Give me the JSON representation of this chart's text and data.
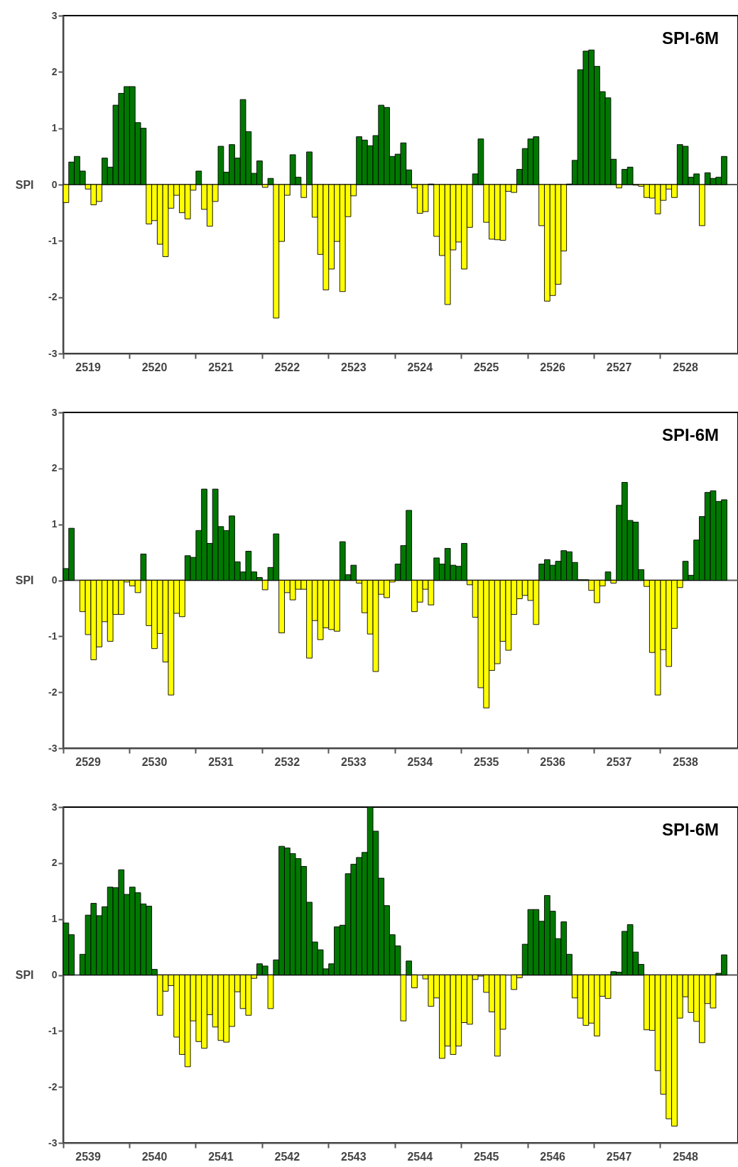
{
  "chart_data": [
    {
      "type": "bar",
      "title": "SPI-6M",
      "ylabel": "SPI",
      "ylim": [
        -3,
        3
      ],
      "yticks": [
        -3,
        -2,
        -1,
        0,
        1,
        2,
        3
      ],
      "categories": [
        null,
        null,
        null,
        null,
        "2519",
        null,
        null,
        null,
        null,
        null,
        null,
        null,
        null,
        null,
        null,
        null,
        "2520",
        null,
        null,
        null,
        null,
        null,
        null,
        null,
        null,
        null,
        null,
        null,
        "2521",
        null,
        null,
        null,
        null,
        null,
        null,
        null,
        null,
        null,
        null,
        null,
        "2522",
        null,
        null,
        null,
        null,
        null,
        null,
        null,
        null,
        null,
        null,
        null,
        "2523",
        null,
        null,
        null,
        null,
        null,
        null,
        null,
        null,
        null,
        null,
        null,
        "2524",
        null,
        null,
        null,
        null,
        null,
        null,
        null,
        null,
        null,
        null,
        null,
        "2525",
        null,
        null,
        null,
        null,
        null,
        null,
        null,
        null,
        null,
        null,
        null,
        "2526",
        null,
        null,
        null,
        null,
        null,
        null,
        null,
        null,
        null,
        null,
        null,
        "2527",
        null,
        null,
        null,
        null,
        null,
        null,
        null,
        null,
        null,
        null,
        null,
        "2528",
        null,
        null,
        null,
        null,
        null,
        null,
        null
      ],
      "values": [
        -0.32,
        0.4,
        0.5,
        0.24,
        -0.08,
        -0.36,
        -0.3,
        0.47,
        0.31,
        1.41,
        1.62,
        1.74,
        1.74,
        1.1,
        1.0,
        -0.7,
        -0.64,
        -1.06,
        -1.28,
        -0.42,
        -0.19,
        -0.5,
        -0.61,
        -0.1,
        0.24,
        -0.44,
        -0.74,
        -0.3,
        0.68,
        0.22,
        0.71,
        0.47,
        1.51,
        0.94,
        0.2,
        0.42,
        -0.05,
        0.11,
        -2.37,
        -1.01,
        -0.19,
        0.53,
        0.13,
        -0.23,
        0.58,
        -0.58,
        -1.24,
        -1.87,
        -1.5,
        -1.01,
        -1.9,
        -0.57,
        -0.2,
        0.85,
        0.79,
        0.69,
        0.87,
        1.41,
        1.37,
        0.5,
        0.54,
        0.74,
        0.26,
        -0.06,
        -0.51,
        -0.48,
        0.01,
        -0.92,
        -1.26,
        -2.13,
        -1.16,
        -1.02,
        -1.5,
        -0.76,
        0.19,
        0.81,
        -0.67,
        -0.97,
        -0.98,
        -0.99,
        -0.12,
        -0.14,
        0.27,
        0.64,
        0.81,
        0.85,
        -0.73,
        -2.07,
        -1.97,
        -1.77,
        -1.18,
        0.01,
        0.43,
        2.04,
        2.37,
        2.39,
        2.1,
        1.65,
        1.54,
        0.45,
        -0.06,
        0.27,
        0.31,
        -0.01,
        -0.03,
        -0.23,
        -0.24,
        -0.52,
        -0.28,
        -0.08,
        -0.23,
        0.71,
        0.68,
        0.13,
        0.19,
        -0.73,
        0.21,
        0.11,
        0.13,
        0.5
      ],
      "colors": [
        "#ffff00",
        "#007800",
        "#007800",
        "#007800",
        "#ffff00",
        "#ffff00",
        "#ffff00",
        "#007800",
        "#007800",
        "#007800",
        "#007800",
        "#007800",
        "#007800",
        "#007800",
        "#007800",
        "#ffff00",
        "#ffff00",
        "#ffff00",
        "#ffff00",
        "#ffff00",
        "#ffff00",
        "#ffff00",
        "#ffff00",
        "#ffff00",
        "#007800",
        "#ffff00",
        "#ffff00",
        "#ffff00",
        "#007800",
        "#007800",
        "#007800",
        "#007800",
        "#007800",
        "#007800",
        "#007800",
        "#007800",
        "#ffff00",
        "#007800",
        "#ffff00",
        "#ffff00",
        "#ffff00",
        "#007800",
        "#007800",
        "#ffff00",
        "#007800",
        "#ffff00",
        "#ffff00",
        "#ffff00",
        "#ffff00",
        "#ffff00",
        "#ffff00",
        "#ffff00",
        "#ffff00",
        "#007800",
        "#007800",
        "#007800",
        "#007800",
        "#007800",
        "#007800",
        "#007800",
        "#007800",
        "#007800",
        "#007800",
        "#ffff00",
        "#ffff00",
        "#ffff00",
        "#007800",
        "#ffff00",
        "#ffff00",
        "#ffff00",
        "#ffff00",
        "#ffff00",
        "#ffff00",
        "#ffff00",
        "#007800",
        "#007800",
        "#ffff00",
        "#ffff00",
        "#ffff00",
        "#ffff00",
        "#ffff00",
        "#ffff00",
        "#007800",
        "#007800",
        "#007800",
        "#007800",
        "#ffff00",
        "#ffff00",
        "#ffff00",
        "#ffff00",
        "#ffff00",
        "#007800",
        "#007800",
        "#007800",
        "#007800",
        "#007800",
        "#007800",
        "#007800",
        "#007800",
        "#007800",
        "#ffff00",
        "#007800",
        "#007800",
        "#ffff00",
        "#ffff00",
        "#ffff00",
        "#ffff00",
        "#ffff00",
        "#ffff00",
        "#ffff00",
        "#ffff00",
        "#007800",
        "#007800",
        "#007800",
        "#007800",
        "#ffff00",
        "#007800",
        "#007800",
        "#007800",
        "#007800"
      ]
    },
    {
      "type": "bar",
      "title": "SPI-6M",
      "ylabel": "SPI",
      "ylim": [
        -3,
        3
      ],
      "yticks": [
        -3,
        -2,
        -1,
        0,
        1,
        2,
        3
      ],
      "categories": [
        null,
        null,
        null,
        null,
        "2529",
        null,
        null,
        null,
        null,
        null,
        null,
        null,
        null,
        null,
        null,
        null,
        "2530",
        null,
        null,
        null,
        null,
        null,
        null,
        null,
        null,
        null,
        null,
        null,
        "2531",
        null,
        null,
        null,
        null,
        null,
        null,
        null,
        null,
        null,
        null,
        null,
        "2532",
        null,
        null,
        null,
        null,
        null,
        null,
        null,
        null,
        null,
        null,
        null,
        "2533",
        null,
        null,
        null,
        null,
        null,
        null,
        null,
        null,
        null,
        null,
        null,
        "2534",
        null,
        null,
        null,
        null,
        null,
        null,
        null,
        null,
        null,
        null,
        null,
        "2535",
        null,
        null,
        null,
        null,
        null,
        null,
        null,
        null,
        null,
        null,
        null,
        "2536",
        null,
        null,
        null,
        null,
        null,
        null,
        null,
        null,
        null,
        null,
        null,
        "2537",
        null,
        null,
        null,
        null,
        null,
        null,
        null,
        null,
        null,
        null,
        null,
        "2538",
        null,
        null,
        null,
        null,
        null,
        null,
        null
      ],
      "values": [
        0.21,
        0.93,
        0,
        -0.56,
        -0.97,
        -1.42,
        -1.19,
        -0.74,
        -1.09,
        -0.61,
        -0.61,
        -0.03,
        -0.1,
        -0.22,
        0.47,
        -0.81,
        -1.22,
        -0.95,
        -1.46,
        -2.05,
        -0.59,
        -0.65,
        0.44,
        0.41,
        0.89,
        1.63,
        0.66,
        1.63,
        0.96,
        0.89,
        1.15,
        0.33,
        0.15,
        0.52,
        0.15,
        0.05,
        -0.17,
        0.23,
        0.83,
        -0.94,
        -0.22,
        -0.35,
        -0.16,
        -0.16,
        -1.39,
        -0.72,
        -1.06,
        -0.85,
        -0.88,
        -0.91,
        0.69,
        0.1,
        0.27,
        -0.05,
        -0.58,
        -0.96,
        -1.63,
        -0.25,
        -0.31,
        -0.03,
        0.29,
        0.62,
        1.25,
        -0.56,
        -0.39,
        -0.16,
        -0.44,
        0.4,
        0.29,
        0.57,
        0.27,
        0.25,
        0.66,
        -0.08,
        -0.66,
        -1.92,
        -2.28,
        -1.61,
        -1.49,
        -1.09,
        -1.25,
        -0.61,
        -0.33,
        -0.27,
        -0.36,
        -0.79,
        0.29,
        0.37,
        0.27,
        0.34,
        0.53,
        0.51,
        0.32,
        0.01,
        0.01,
        -0.18,
        -0.4,
        -0.1,
        0.15,
        -0.05,
        1.34,
        1.75,
        1.07,
        1.04,
        0.19,
        -0.11,
        -1.29,
        -2.05,
        -1.24,
        -1.54,
        -0.86,
        -0.13,
        0.34,
        0.09,
        0.72,
        1.14,
        1.57,
        1.6,
        1.41,
        1.44
      ],
      "colors": [
        "#007800",
        "#007800",
        "#007800",
        "#ffff00",
        "#ffff00",
        "#ffff00",
        "#ffff00",
        "#ffff00",
        "#ffff00",
        "#ffff00",
        "#ffff00",
        "#ffff00",
        "#ffff00",
        "#ffff00",
        "#007800",
        "#ffff00",
        "#ffff00",
        "#ffff00",
        "#ffff00",
        "#ffff00",
        "#ffff00",
        "#ffff00",
        "#007800",
        "#007800",
        "#007800",
        "#007800",
        "#007800",
        "#007800",
        "#007800",
        "#007800",
        "#007800",
        "#007800",
        "#007800",
        "#007800",
        "#007800",
        "#007800",
        "#ffff00",
        "#007800",
        "#007800",
        "#ffff00",
        "#ffff00",
        "#ffff00",
        "#ffff00",
        "#ffff00",
        "#ffff00",
        "#ffff00",
        "#ffff00",
        "#ffff00",
        "#ffff00",
        "#ffff00",
        "#007800",
        "#007800",
        "#007800",
        "#ffff00",
        "#ffff00",
        "#ffff00",
        "#ffff00",
        "#ffff00",
        "#ffff00",
        "#ffff00",
        "#007800",
        "#007800",
        "#007800",
        "#ffff00",
        "#ffff00",
        "#ffff00",
        "#ffff00",
        "#007800",
        "#007800",
        "#007800",
        "#007800",
        "#007800",
        "#007800",
        "#ffff00",
        "#ffff00",
        "#ffff00",
        "#ffff00",
        "#ffff00",
        "#ffff00",
        "#ffff00",
        "#ffff00",
        "#ffff00",
        "#ffff00",
        "#ffff00",
        "#ffff00",
        "#ffff00",
        "#007800",
        "#007800",
        "#007800",
        "#007800",
        "#007800",
        "#007800",
        "#007800",
        "#007800",
        "#007800",
        "#ffff00",
        "#ffff00",
        "#ffff00",
        "#007800",
        "#ffff00",
        "#007800",
        "#007800",
        "#007800",
        "#007800",
        "#007800",
        "#ffff00",
        "#ffff00",
        "#ffff00",
        "#ffff00",
        "#ffff00",
        "#ffff00",
        "#ffff00",
        "#007800",
        "#007800",
        "#007800",
        "#007800",
        "#007800",
        "#007800",
        "#007800",
        "#007800"
      ]
    },
    {
      "type": "bar",
      "title": "SPI-6M",
      "ylabel": "SPI",
      "ylim": [
        -3,
        3
      ],
      "yticks": [
        -3,
        -2,
        -1,
        0,
        1,
        2,
        3
      ],
      "categories": [
        null,
        null,
        null,
        null,
        "2539",
        null,
        null,
        null,
        null,
        null,
        null,
        null,
        null,
        null,
        null,
        null,
        "2540",
        null,
        null,
        null,
        null,
        null,
        null,
        null,
        null,
        null,
        null,
        null,
        "2541",
        null,
        null,
        null,
        null,
        null,
        null,
        null,
        null,
        null,
        null,
        null,
        "2542",
        null,
        null,
        null,
        null,
        null,
        null,
        null,
        null,
        null,
        null,
        null,
        "2543",
        null,
        null,
        null,
        null,
        null,
        null,
        null,
        null,
        null,
        null,
        null,
        "2544",
        null,
        null,
        null,
        null,
        null,
        null,
        null,
        null,
        null,
        null,
        null,
        "2545",
        null,
        null,
        null,
        null,
        null,
        null,
        null,
        null,
        null,
        null,
        null,
        "2546",
        null,
        null,
        null,
        null,
        null,
        null,
        null,
        null,
        null,
        null,
        null,
        "2547",
        null,
        null,
        null,
        null,
        null,
        null,
        null,
        null,
        null,
        null,
        null,
        "2548",
        null,
        null,
        null,
        null,
        null,
        null,
        null
      ],
      "values": [
        0.93,
        0.72,
        0,
        0.37,
        1.07,
        1.28,
        1.06,
        1.22,
        1.57,
        1.56,
        1.88,
        1.44,
        1.57,
        1.47,
        1.27,
        1.23,
        0.1,
        -0.72,
        -0.29,
        -0.19,
        -1.11,
        -1.42,
        -1.64,
        -0.82,
        -1.19,
        -1.31,
        -0.71,
        -0.93,
        -1.17,
        -1.2,
        -0.92,
        -0.3,
        -0.6,
        -0.72,
        -0.06,
        0.2,
        0.16,
        -0.6,
        0.27,
        2.3,
        2.27,
        2.17,
        2.08,
        1.94,
        1.3,
        0.59,
        0.45,
        0.11,
        0.2,
        0.86,
        0.89,
        1.81,
        1.98,
        2.1,
        2.19,
        3.0,
        2.57,
        1.73,
        1.24,
        0.72,
        0.52,
        -0.82,
        0.25,
        -0.23,
        0,
        -0.07,
        -0.56,
        -0.41,
        -1.49,
        -1.27,
        -1.42,
        -1.27,
        -0.85,
        -0.88,
        -0.08,
        -0.02,
        -0.31,
        -0.66,
        -1.45,
        -0.97,
        0,
        -0.26,
        -0.05,
        0.55,
        1.17,
        1.17,
        0.96,
        1.42,
        1.14,
        0.65,
        0.95,
        0.37,
        -0.41,
        -0.77,
        -0.9,
        -0.86,
        -1.09,
        -0.38,
        -0.42,
        0.06,
        0.05,
        0.78,
        0.9,
        0.41,
        0.19,
        -0.98,
        -0.99,
        -1.71,
        -2.13,
        -2.57,
        -2.7,
        -0.77,
        -0.39,
        -0.67,
        -0.83,
        -1.21,
        -0.51,
        -0.59,
        0.03,
        0.36
      ],
      "colors": [
        "#007800",
        "#007800",
        "#007800",
        "#007800",
        "#007800",
        "#007800",
        "#007800",
        "#007800",
        "#007800",
        "#007800",
        "#007800",
        "#007800",
        "#007800",
        "#007800",
        "#007800",
        "#007800",
        "#007800",
        "#ffff00",
        "#ffff00",
        "#ffff00",
        "#ffff00",
        "#ffff00",
        "#ffff00",
        "#ffff00",
        "#ffff00",
        "#ffff00",
        "#ffff00",
        "#ffff00",
        "#ffff00",
        "#ffff00",
        "#ffff00",
        "#ffff00",
        "#ffff00",
        "#ffff00",
        "#ffff00",
        "#007800",
        "#007800",
        "#ffff00",
        "#007800",
        "#007800",
        "#007800",
        "#007800",
        "#007800",
        "#007800",
        "#007800",
        "#007800",
        "#007800",
        "#007800",
        "#007800",
        "#007800",
        "#007800",
        "#007800",
        "#007800",
        "#007800",
        "#007800",
        "#007800",
        "#007800",
        "#007800",
        "#007800",
        "#007800",
        "#007800",
        "#ffff00",
        "#007800",
        "#ffff00",
        "#007800",
        "#ffff00",
        "#ffff00",
        "#ffff00",
        "#ffff00",
        "#ffff00",
        "#ffff00",
        "#ffff00",
        "#ffff00",
        "#ffff00",
        "#ffff00",
        "#ffff00",
        "#ffff00",
        "#ffff00",
        "#ffff00",
        "#ffff00",
        "#007800",
        "#ffff00",
        "#ffff00",
        "#007800",
        "#007800",
        "#007800",
        "#007800",
        "#007800",
        "#007800",
        "#007800",
        "#007800",
        "#007800",
        "#ffff00",
        "#ffff00",
        "#ffff00",
        "#ffff00",
        "#ffff00",
        "#ffff00",
        "#ffff00",
        "#007800",
        "#007800",
        "#007800",
        "#007800",
        "#007800",
        "#007800",
        "#ffff00",
        "#ffff00",
        "#ffff00",
        "#ffff00",
        "#ffff00",
        "#ffff00",
        "#ffff00",
        "#ffff00",
        "#ffff00",
        "#ffff00",
        "#ffff00",
        "#ffff00",
        "#ffff00",
        "#007800",
        "#007800"
      ]
    }
  ]
}
